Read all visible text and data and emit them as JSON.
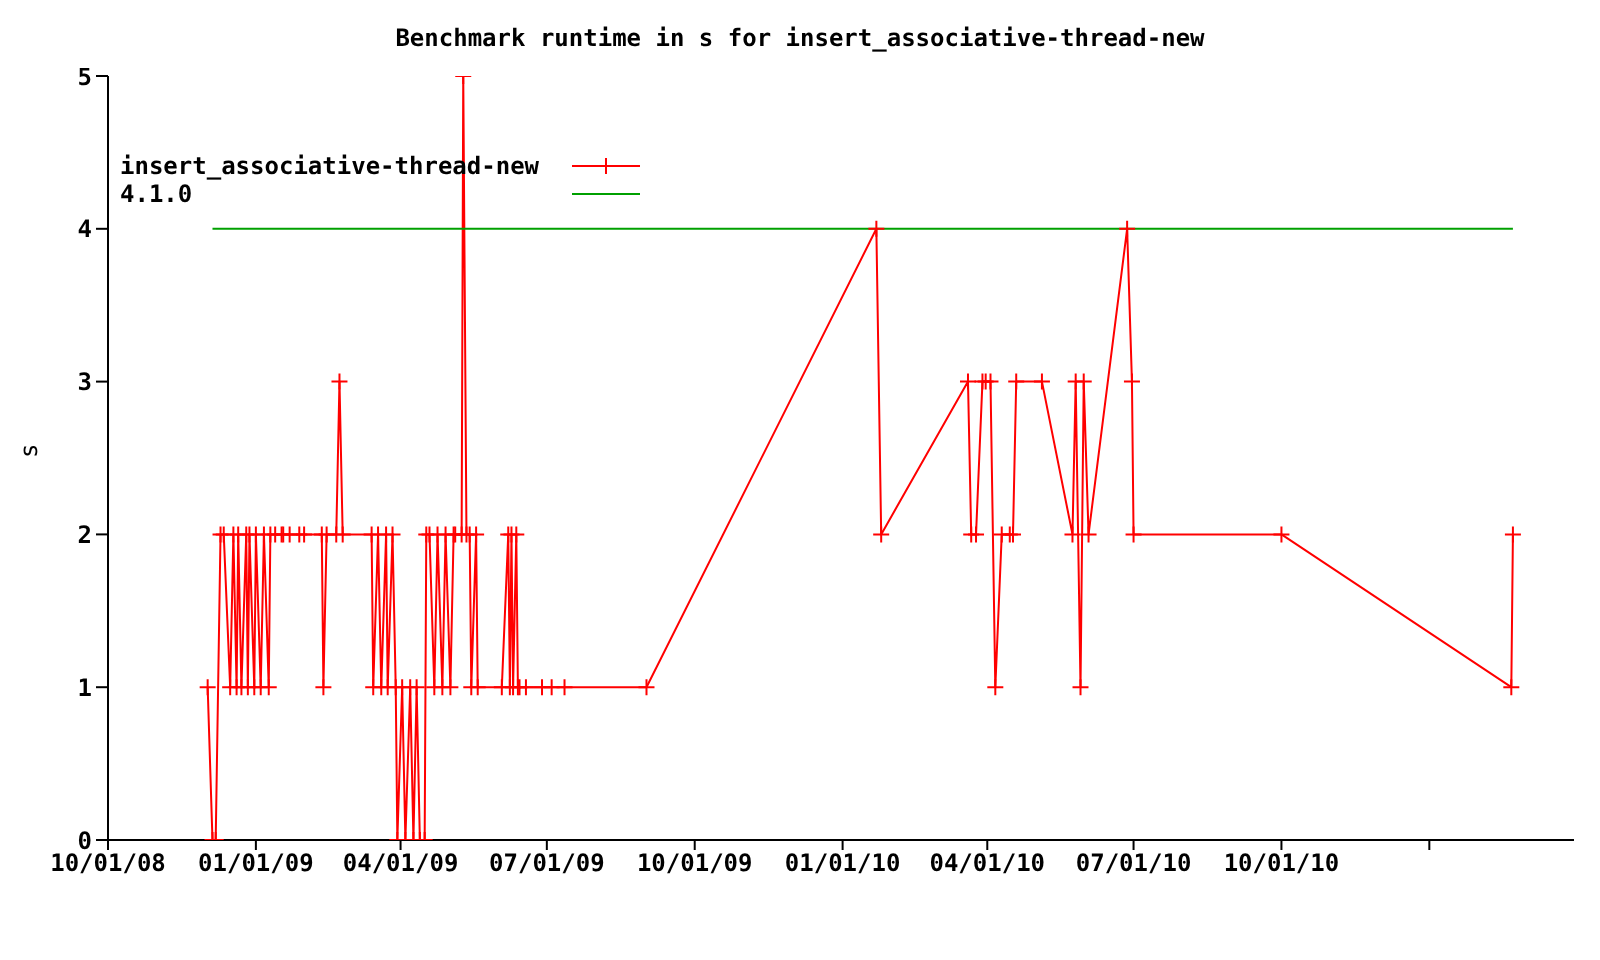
{
  "chart_data": {
    "type": "line",
    "title": "Benchmark runtime in s for insert_associative-thread-new",
    "ylabel": "s",
    "xlim": [
      "2008-10-01",
      "2011-04-01"
    ],
    "xticks": [
      {
        "value": "2008-10-01",
        "label": "10/01/08"
      },
      {
        "value": "2009-01-01",
        "label": "01/01/09"
      },
      {
        "value": "2009-04-01",
        "label": "04/01/09"
      },
      {
        "value": "2009-07-01",
        "label": "07/01/09"
      },
      {
        "value": "2009-10-01",
        "label": "10/01/09"
      },
      {
        "value": "2010-01-01",
        "label": "01/01/10"
      },
      {
        "value": "2010-04-01",
        "label": "04/01/10"
      },
      {
        "value": "2010-07-01",
        "label": "07/01/10"
      },
      {
        "value": "2010-10-01",
        "label": "10/01/10"
      },
      {
        "value": "2011-01-01",
        "label": null
      }
    ],
    "ylim": [
      0,
      5
    ],
    "yticks": [
      0,
      1,
      2,
      3,
      4,
      5
    ],
    "legend": "top left",
    "marker": "cross",
    "line_style": "solid",
    "series": [
      {
        "name": "insert_associative-thread-new",
        "color": "#ff0000",
        "x": [
          "2008-12-02",
          "2008-12-05",
          "2008-12-07",
          "2008-12-10",
          "2008-12-12",
          "2008-12-16",
          "2008-12-18",
          "2008-12-20",
          "2008-12-21",
          "2008-12-23",
          "2008-12-26",
          "2008-12-27",
          "2008-12-28",
          "2008-12-31",
          "2009-01-01",
          "2009-01-04",
          "2009-01-06",
          "2009-01-09",
          "2009-01-10",
          "2009-01-13",
          "2009-01-17",
          "2009-01-18",
          "2009-01-22",
          "2009-01-28",
          "2009-01-31",
          "2009-02-11",
          "2009-02-12",
          "2009-02-14",
          "2009-02-20",
          "2009-02-22",
          "2009-02-24",
          "2009-03-14",
          "2009-03-15",
          "2009-03-18",
          "2009-03-20",
          "2009-03-23",
          "2009-03-24",
          "2009-03-27",
          "2009-03-29",
          "2009-03-30",
          "2009-04-02",
          "2009-04-04",
          "2009-04-07",
          "2009-04-09",
          "2009-04-11",
          "2009-04-13",
          "2009-04-16",
          "2009-04-17",
          "2009-04-19",
          "2009-04-22",
          "2009-04-24",
          "2009-04-27",
          "2009-04-29",
          "2009-05-02",
          "2009-05-04",
          "2009-05-05",
          "2009-05-09",
          "2009-05-10",
          "2009-05-12",
          "2009-05-14",
          "2009-05-15",
          "2009-05-18",
          "2009-05-19",
          "2009-06-03",
          "2009-06-07",
          "2009-06-08",
          "2009-06-09",
          "2009-06-10",
          "2009-06-12",
          "2009-06-13",
          "2009-06-14",
          "2009-06-18",
          "2009-06-28",
          "2009-07-04",
          "2009-07-12",
          "2009-09-01",
          "2010-01-22",
          "2010-01-25",
          "2010-03-20",
          "2010-03-22",
          "2010-03-25",
          "2010-03-29",
          "2010-03-31",
          "2010-04-03",
          "2010-04-06",
          "2010-04-10",
          "2010-04-15",
          "2010-04-17",
          "2010-04-19",
          "2010-05-05",
          "2010-05-24",
          "2010-05-26",
          "2010-05-29",
          "2010-05-31",
          "2010-06-03",
          "2010-06-27",
          "2010-06-30",
          "2010-07-01",
          "2010-10-01",
          "2011-02-21",
          "2011-02-22"
        ],
        "values": [
          1,
          0,
          0,
          2,
          2,
          1,
          2,
          1,
          2,
          1,
          2,
          1,
          2,
          1,
          2,
          1,
          2,
          1,
          2,
          2,
          2,
          2,
          2,
          2,
          2,
          2,
          1,
          2,
          2,
          3,
          2,
          2,
          1,
          2,
          1,
          2,
          1,
          2,
          1,
          0,
          1,
          0,
          1,
          0,
          1,
          0,
          0,
          2,
          2,
          1,
          2,
          1,
          2,
          1,
          2,
          2,
          2,
          5,
          2,
          2,
          1,
          2,
          1,
          1,
          2,
          1,
          2,
          1,
          2,
          1,
          1,
          1,
          1,
          1,
          1,
          1,
          4,
          2,
          3,
          2,
          2,
          3,
          3,
          3,
          1,
          2,
          2,
          2,
          3,
          3,
          2,
          3,
          1,
          3,
          2,
          4,
          3,
          2,
          2,
          1,
          2
        ]
      },
      {
        "name": "4.1.0",
        "color": "#00a000",
        "marker": "none",
        "x": [
          "2008-12-05",
          "2011-02-22"
        ],
        "values": [
          4,
          4
        ]
      }
    ]
  }
}
